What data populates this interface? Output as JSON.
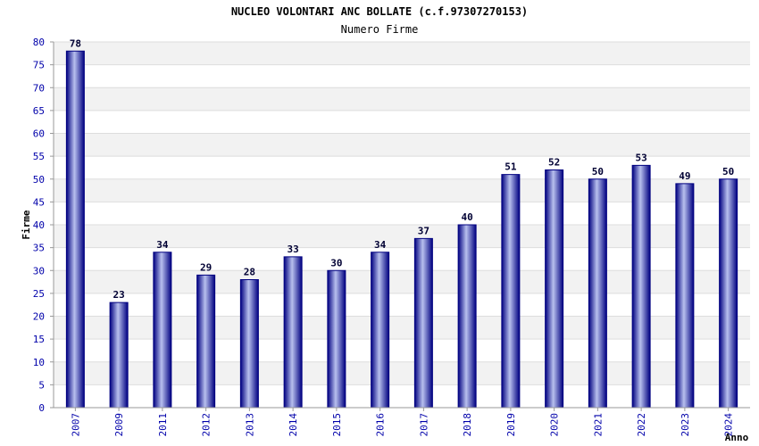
{
  "chart_data": {
    "type": "bar",
    "title": "NUCLEO VOLONTARI ANC BOLLATE (c.f.97307270153)",
    "subtitle": "Numero Firme",
    "xlabel": "Anno",
    "ylabel": "Firme",
    "categories": [
      "2007",
      "2009",
      "2011",
      "2012",
      "2013",
      "2014",
      "2015",
      "2016",
      "2017",
      "2018",
      "2019",
      "2020",
      "2021",
      "2022",
      "2023",
      "2024"
    ],
    "values": [
      78,
      23,
      34,
      29,
      28,
      33,
      30,
      34,
      37,
      40,
      51,
      52,
      50,
      53,
      49,
      50
    ],
    "ylim": [
      0,
      80
    ],
    "yticks": [
      0,
      5,
      10,
      15,
      20,
      25,
      30,
      35,
      40,
      45,
      50,
      55,
      60,
      65,
      70,
      75,
      80
    ],
    "grid": true,
    "colors": {
      "bar_dark": "#000080",
      "bar_light": "#b8c0ee",
      "band": "#f2f2f2",
      "tick_text": "#0000aa"
    }
  }
}
